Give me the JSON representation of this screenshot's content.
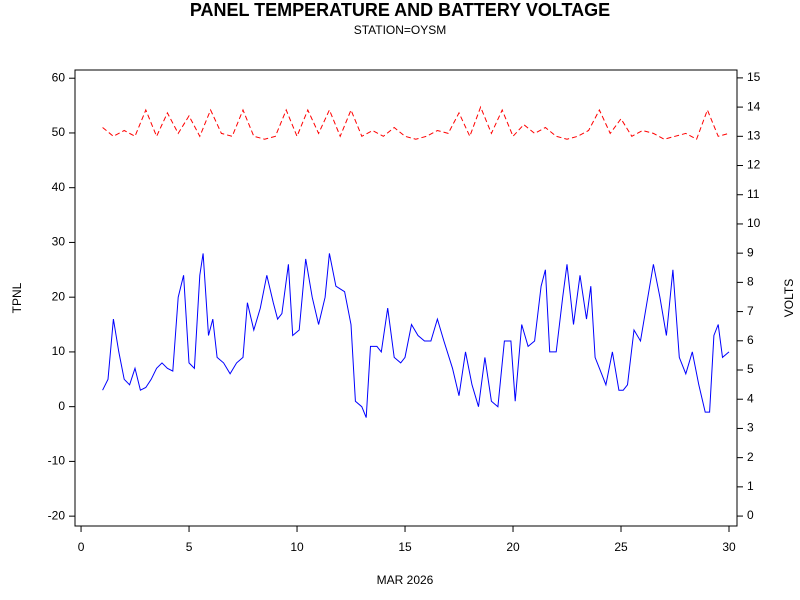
{
  "chart_data": {
    "type": "line",
    "title": "PANEL TEMPERATURE AND BATTERY VOLTAGE",
    "subtitle": "STATION=OYSM",
    "x_label": "MAR 2026",
    "y_label": "TPNL",
    "y2_label": "VOLTS",
    "xlim": [
      -0.28,
      30.37
    ],
    "xticks": [
      0,
      5,
      10,
      15,
      20,
      25,
      30
    ],
    "ylim": [
      -21.8,
      61.5
    ],
    "yticks": [
      -20,
      -10,
      0,
      10,
      20,
      30,
      40,
      50,
      60
    ],
    "y2lim": [
      -0.34,
      15.27
    ],
    "y2ticks": [
      0,
      1,
      2,
      3,
      4,
      5,
      6,
      7,
      8,
      9,
      10,
      11,
      12,
      13,
      14,
      15
    ],
    "series": [
      {
        "name": "TPNL",
        "color": "#0000ff",
        "x": [
          1,
          1.25,
          1.5,
          1.75,
          2,
          2.25,
          2.5,
          2.75,
          3,
          3.25,
          3.5,
          3.75,
          4,
          4.25,
          4.5,
          4.75,
          5,
          5.25,
          5.5,
          5.65,
          5.9,
          6.1,
          6.3,
          6.6,
          6.9,
          7.2,
          7.5,
          7.7,
          8,
          8.3,
          8.6,
          8.9,
          9.1,
          9.3,
          9.6,
          9.8,
          10.1,
          10.4,
          10.7,
          11,
          11.3,
          11.5,
          11.8,
          12.2,
          12.5,
          12.7,
          13,
          13.2,
          13.4,
          13.7,
          13.9,
          14.2,
          14.5,
          14.8,
          15,
          15.3,
          15.6,
          15.9,
          16.2,
          16.5,
          16.8,
          17.2,
          17.5,
          17.8,
          18.1,
          18.4,
          18.7,
          19,
          19.3,
          19.6,
          19.9,
          20.1,
          20.4,
          20.7,
          21,
          21.3,
          21.5,
          21.7,
          22,
          22.3,
          22.5,
          22.8,
          23.1,
          23.4,
          23.6,
          23.8,
          24.1,
          24.3,
          24.6,
          24.9,
          25.1,
          25.3,
          25.6,
          25.9,
          26.2,
          26.5,
          26.8,
          27.1,
          27.4,
          27.7,
          28,
          28.3,
          28.6,
          28.9,
          29.1,
          29.3,
          29.5,
          29.7,
          30
        ],
        "values": [
          3,
          5,
          16,
          10,
          5,
          4,
          7,
          3,
          3.5,
          5,
          7,
          8,
          7,
          6.5,
          20,
          24,
          8,
          7,
          24,
          28,
          13,
          16,
          9,
          8,
          6,
          8,
          9,
          19,
          14,
          18,
          24,
          19,
          16,
          17,
          26,
          13,
          14,
          27,
          20,
          15,
          20,
          28,
          22,
          21,
          15,
          1,
          0,
          -2,
          11,
          11,
          10,
          18,
          9,
          8,
          9,
          15,
          13,
          12,
          12,
          16,
          12,
          7,
          2,
          10,
          4,
          0,
          9,
          1,
          0,
          12,
          12,
          1,
          15,
          11,
          12,
          22,
          25,
          10,
          10,
          20,
          26,
          15,
          24,
          16,
          22,
          9,
          6,
          4,
          10,
          3,
          3,
          4,
          14,
          12,
          19,
          26,
          20,
          13,
          25,
          9,
          6,
          10,
          4,
          -1,
          -1,
          13,
          15,
          9,
          10
        ]
      },
      {
        "name": "VOLTS",
        "color": "#ff0000",
        "axis": "y2",
        "x": [
          1,
          1.5,
          2,
          2.5,
          3,
          3.5,
          4,
          4.5,
          5,
          5.5,
          6,
          6.5,
          7,
          7.5,
          8,
          8.5,
          9,
          9.5,
          10,
          10.5,
          11,
          11.5,
          12,
          12.5,
          13,
          13.5,
          14,
          14.5,
          15,
          15.5,
          16,
          16.5,
          17,
          17.5,
          18,
          18.5,
          19,
          19.5,
          20,
          20.5,
          21,
          21.5,
          22,
          22.5,
          23,
          23.5,
          24,
          24.5,
          25,
          25.5,
          26,
          26.5,
          27,
          27.5,
          28,
          28.5,
          29,
          29.5,
          30
        ],
        "values": [
          13.3,
          13.0,
          13.2,
          13.0,
          13.9,
          13.0,
          13.8,
          13.1,
          13.7,
          13.0,
          13.9,
          13.1,
          13.0,
          13.9,
          13.0,
          12.9,
          13.0,
          13.9,
          13.0,
          13.9,
          13.1,
          13.9,
          13.0,
          13.9,
          13.0,
          13.2,
          13.0,
          13.3,
          13.0,
          12.9,
          13.0,
          13.2,
          13.1,
          13.8,
          13.0,
          14.0,
          13.1,
          13.9,
          13.0,
          13.4,
          13.1,
          13.3,
          13.0,
          12.9,
          13.0,
          13.2,
          13.9,
          13.1,
          13.6,
          13.0,
          13.2,
          13.1,
          12.9,
          13.0,
          13.1,
          12.9,
          13.9,
          13.0,
          13.1
        ]
      }
    ]
  }
}
